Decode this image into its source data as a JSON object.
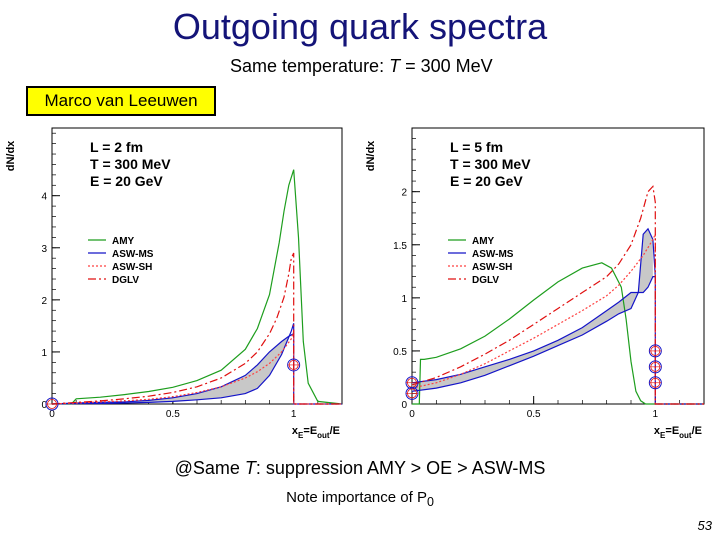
{
  "title": "Outgoing quark spectra",
  "subtitle": {
    "prefix": "Same temperature: ",
    "var": "T",
    "suffix": " = 300 MeV"
  },
  "author": "Marco van Leeuwen",
  "footer": {
    "prefix": "@Same ",
    "var": "T",
    "suffix": ": suppression AMY > OE > ASW-MS"
  },
  "note": {
    "text": "Note importance of P",
    "sub": "0"
  },
  "page_number": "53",
  "colors": {
    "AMY": "#1e9e1e",
    "ASW-MS": "#1414c8",
    "ASW-SH": "#ff4040",
    "DGLV": "#e01010",
    "band": "#c8c8c8",
    "title": "#141478"
  },
  "chart_data": [
    {
      "type": "line",
      "ylabel": "dN/dx",
      "xlabel": {
        "main": "x",
        "sub": "E",
        "mid": "=E",
        "sub2": "out",
        "end": "/E"
      },
      "xlim": [
        0,
        1.2
      ],
      "ylim": [
        0,
        5.3
      ],
      "xticks": [
        "0",
        "0.5",
        "1"
      ],
      "yticks": [
        "0",
        "1",
        "2",
        "3",
        "4"
      ],
      "params": [
        "L = 2 fm",
        "T = 300 MeV",
        "E = 20 GeV"
      ],
      "legend": [
        "AMY",
        "ASW-MS",
        "ASW-SH",
        "DGLV"
      ],
      "series": [
        {
          "name": "AMY",
          "x": [
            0.0,
            0.08,
            0.1,
            0.2,
            0.3,
            0.4,
            0.5,
            0.6,
            0.7,
            0.8,
            0.85,
            0.9,
            0.94,
            0.96,
            0.98,
            1.0,
            1.02,
            1.04,
            1.06,
            1.1,
            1.2
          ],
          "y": [
            0,
            0,
            0.1,
            0.13,
            0.18,
            0.24,
            0.32,
            0.45,
            0.65,
            1.05,
            1.45,
            2.1,
            3.1,
            3.7,
            4.2,
            4.5,
            3.2,
            1.2,
            0.4,
            0.05,
            0
          ]
        },
        {
          "name": "ASW-MS",
          "x": [
            0.0,
            0.1,
            0.2,
            0.3,
            0.4,
            0.5,
            0.6,
            0.7,
            0.8,
            0.85,
            0.9,
            0.95,
            0.99,
            1.0,
            1.0,
            1.2
          ],
          "y": [
            0,
            0.01,
            0.01,
            0.02,
            0.03,
            0.05,
            0.08,
            0.12,
            0.2,
            0.3,
            0.55,
            0.95,
            1.4,
            1.55,
            0,
            0
          ]
        },
        {
          "name": "ASW-MS-upper",
          "x": [
            0.0,
            0.1,
            0.2,
            0.3,
            0.4,
            0.5,
            0.6,
            0.7,
            0.8,
            0.85,
            0.9,
            0.95,
            0.98,
            1.0
          ],
          "y": [
            0,
            0.02,
            0.03,
            0.04,
            0.07,
            0.12,
            0.2,
            0.33,
            0.55,
            0.75,
            1.0,
            1.2,
            1.3,
            1.35
          ]
        },
        {
          "name": "ASW-SH",
          "x": [
            0.0,
            0.1,
            0.2,
            0.3,
            0.4,
            0.5,
            0.6,
            0.7,
            0.8,
            0.85,
            0.9,
            0.95,
            0.99,
            1.0,
            1.0,
            1.2
          ],
          "y": [
            0,
            0.02,
            0.04,
            0.06,
            0.09,
            0.14,
            0.22,
            0.33,
            0.5,
            0.62,
            0.78,
            1.0,
            1.25,
            1.4,
            0,
            0
          ]
        },
        {
          "name": "DGLV",
          "x": [
            0.0,
            0.1,
            0.2,
            0.3,
            0.4,
            0.5,
            0.6,
            0.7,
            0.8,
            0.85,
            0.9,
            0.93,
            0.96,
            0.98,
            0.99,
            1.0,
            1.0,
            1.2
          ],
          "y": [
            0,
            0.03,
            0.06,
            0.1,
            0.15,
            0.22,
            0.33,
            0.5,
            0.78,
            1.0,
            1.35,
            1.65,
            2.05,
            2.5,
            2.8,
            2.9,
            0,
            0
          ]
        }
      ],
      "band": {
        "x": [
          0.0,
          0.1,
          0.2,
          0.3,
          0.4,
          0.5,
          0.6,
          0.7,
          0.8,
          0.85,
          0.9,
          0.95,
          0.98
        ],
        "lower": [
          0,
          0.01,
          0.01,
          0.02,
          0.03,
          0.05,
          0.08,
          0.12,
          0.2,
          0.3,
          0.55,
          0.95,
          1.25
        ],
        "upper": [
          0,
          0.02,
          0.03,
          0.04,
          0.07,
          0.12,
          0.2,
          0.33,
          0.55,
          0.75,
          1.0,
          1.2,
          1.3
        ]
      },
      "markers": [
        {
          "x": 0.0,
          "y": 0.0
        },
        {
          "x": 1.0,
          "y": 0.75
        }
      ]
    },
    {
      "type": "line",
      "ylabel": "dN/dx",
      "xlabel": {
        "main": "x",
        "sub": "E",
        "mid": "=E",
        "sub2": "out",
        "end": "/E"
      },
      "xlim": [
        0,
        1.2
      ],
      "ylim": [
        0,
        2.6
      ],
      "xticks": [
        "0",
        "0.5",
        "1"
      ],
      "yticks": [
        "0",
        "0.5",
        "1",
        "1.5",
        "2"
      ],
      "params": [
        "L = 5 fm",
        "T = 300 MeV",
        "E = 20 GeV"
      ],
      "legend": [
        "AMY",
        "ASW-MS",
        "ASW-SH",
        "DGLV"
      ],
      "series": [
        {
          "name": "AMY",
          "x": [
            0.0,
            0.03,
            0.035,
            0.05,
            0.1,
            0.2,
            0.3,
            0.4,
            0.5,
            0.6,
            0.7,
            0.78,
            0.82,
            0.86,
            0.88,
            0.9,
            0.92,
            0.94,
            0.96,
            1.0,
            1.2
          ],
          "y": [
            0,
            0,
            0.42,
            0.42,
            0.44,
            0.52,
            0.64,
            0.8,
            0.98,
            1.15,
            1.28,
            1.33,
            1.28,
            1.1,
            0.8,
            0.4,
            0.12,
            0.03,
            0,
            0,
            0
          ]
        },
        {
          "name": "ASW-MS",
          "x": [
            0.0,
            0.1,
            0.2,
            0.3,
            0.4,
            0.5,
            0.6,
            0.7,
            0.8,
            0.85,
            0.9,
            0.93,
            0.95,
            0.97,
            0.99,
            1.0,
            1.0,
            1.2
          ],
          "y": [
            0.12,
            0.15,
            0.2,
            0.27,
            0.36,
            0.45,
            0.55,
            0.65,
            0.78,
            0.85,
            0.9,
            1.05,
            1.6,
            1.65,
            1.55,
            1.2,
            0,
            0
          ]
        },
        {
          "name": "ASW-MS-lower",
          "x": [
            0.0,
            0.1,
            0.2,
            0.3,
            0.4,
            0.5,
            0.6,
            0.7,
            0.8,
            0.85,
            0.9,
            0.95,
            0.97,
            0.99,
            1.0
          ],
          "y": [
            0.2,
            0.23,
            0.28,
            0.35,
            0.42,
            0.5,
            0.6,
            0.72,
            0.88,
            0.96,
            1.05,
            1.05,
            1.1,
            1.2,
            1.2
          ]
        },
        {
          "name": "ASW-SH",
          "x": [
            0.0,
            0.1,
            0.2,
            0.3,
            0.4,
            0.5,
            0.6,
            0.7,
            0.8,
            0.85,
            0.9,
            0.95,
            0.99,
            1.0,
            1.0,
            1.2
          ],
          "y": [
            0.15,
            0.2,
            0.28,
            0.38,
            0.5,
            0.62,
            0.75,
            0.88,
            1.02,
            1.12,
            1.25,
            1.4,
            1.55,
            1.6,
            0,
            0
          ]
        },
        {
          "name": "DGLV",
          "x": [
            0.0,
            0.1,
            0.2,
            0.3,
            0.4,
            0.5,
            0.6,
            0.7,
            0.8,
            0.85,
            0.9,
            0.94,
            0.97,
            0.99,
            1.0,
            1.0,
            1.2
          ],
          "y": [
            0.18,
            0.25,
            0.35,
            0.47,
            0.6,
            0.75,
            0.9,
            1.05,
            1.2,
            1.32,
            1.5,
            1.75,
            2.0,
            2.05,
            1.9,
            0,
            0
          ]
        }
      ],
      "band": {
        "x": [
          0.0,
          0.1,
          0.2,
          0.3,
          0.4,
          0.5,
          0.6,
          0.7,
          0.8,
          0.85,
          0.9,
          0.93,
          0.95,
          0.97,
          0.99
        ],
        "lower": [
          0.12,
          0.15,
          0.2,
          0.27,
          0.36,
          0.45,
          0.55,
          0.65,
          0.78,
          0.85,
          0.9,
          1.05,
          1.05,
          1.1,
          1.2
        ],
        "upper": [
          0.2,
          0.23,
          0.28,
          0.35,
          0.42,
          0.5,
          0.6,
          0.72,
          0.88,
          0.96,
          1.05,
          1.05,
          1.6,
          1.65,
          1.55
        ]
      },
      "markers": [
        {
          "x": 0.0,
          "y": 0.2
        },
        {
          "x": 0.0,
          "y": 0.1
        },
        {
          "x": 1.0,
          "y": 0.5
        },
        {
          "x": 1.0,
          "y": 0.35
        },
        {
          "x": 1.0,
          "y": 0.2
        }
      ]
    }
  ]
}
